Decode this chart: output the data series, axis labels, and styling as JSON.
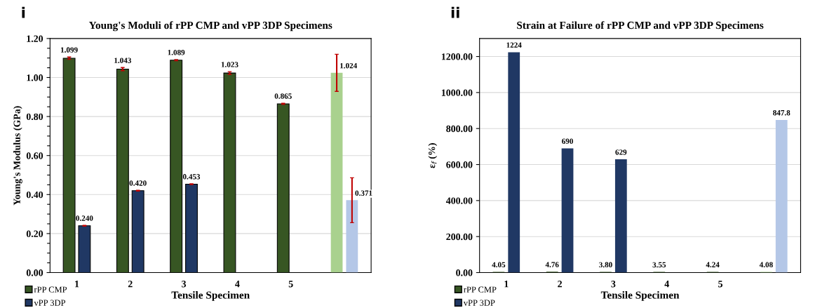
{
  "chart_data": [
    {
      "type": "bar",
      "title": "Young's Moduli of rPP CMP and vPP 3DP Specimens",
      "xlabel": "Tensile Specimen",
      "ylabel": "Young's Modulus (GPa)",
      "annotations": [
        "i"
      ],
      "categories": [
        "1",
        "2",
        "3",
        "4",
        "5",
        null
      ],
      "series": [
        {
          "name": "rPP CMP",
          "color": "#375623",
          "colors": [
            "#375623",
            "#375623",
            "#375623",
            "#375623",
            "#375623",
            "#a9d18e"
          ],
          "values": [
            1.099,
            1.043,
            1.089,
            1.023,
            0.865,
            1.024
          ],
          "errors": [
            0.006,
            0.008,
            0.003,
            0.007,
            0.003,
            0.095
          ],
          "value_labels": [
            "1.099",
            "1.043",
            "1.089",
            "1.023",
            "0.865",
            "1.024"
          ]
        },
        {
          "name": "vPP 3DP",
          "color": "#203864",
          "colors": [
            "#203864",
            "#203864",
            "#203864",
            "#203864",
            "#203864",
            "#b4c7e7"
          ],
          "values": [
            0.24,
            0.42,
            0.453,
            null,
            null,
            0.371
          ],
          "errors": [
            0.002,
            0.002,
            0.002,
            null,
            null,
            0.115
          ],
          "value_labels": [
            "0.240",
            "0.420",
            "0.453",
            null,
            null,
            "0.371"
          ]
        }
      ],
      "ylim": [
        0,
        1.2
      ],
      "yticks": [
        {
          "value": 0,
          "label": "0.00"
        },
        {
          "value": 0.05,
          "label": null
        },
        {
          "value": 0.1,
          "label": null
        },
        {
          "value": 0.15,
          "label": null
        },
        {
          "value": 0.2,
          "label": "0.20"
        },
        {
          "value": 0.25,
          "label": null
        },
        {
          "value": 0.3,
          "label": null
        },
        {
          "value": 0.35,
          "label": null
        },
        {
          "value": 0.4,
          "label": "0.40"
        },
        {
          "value": 0.45,
          "label": null
        },
        {
          "value": 0.5,
          "label": null
        },
        {
          "value": 0.55,
          "label": null
        },
        {
          "value": 0.6,
          "label": "0.60"
        },
        {
          "value": 0.65,
          "label": null
        },
        {
          "value": 0.7,
          "label": null
        },
        {
          "value": 0.75,
          "label": null
        },
        {
          "value": 0.8,
          "label": "0.80"
        },
        {
          "value": 0.85,
          "label": null
        },
        {
          "value": 0.9,
          "label": null
        },
        {
          "value": 0.95,
          "label": null
        },
        {
          "value": 1.0,
          "label": "1.00"
        },
        {
          "value": 1.05,
          "label": null
        },
        {
          "value": 1.1,
          "label": null
        },
        {
          "value": 1.15,
          "label": null
        },
        {
          "value": 1.2,
          "label": "1.20"
        }
      ],
      "grid": "y",
      "legend": "bottom left"
    },
    {
      "type": "bar",
      "title": "Strain at Failure of rPP CMP and vPP 3DP Specimens",
      "xlabel": "Tensile Specimen",
      "ylabel": "ε$_{f}$ (%)",
      "annotations": [
        "ii"
      ],
      "categories": [
        "1",
        "2",
        "3",
        "4",
        "5",
        null
      ],
      "series": [
        {
          "name": "rPP CMP",
          "color": "#375623",
          "colors": [
            "#375623",
            "#375623",
            "#375623",
            "#375623",
            "#375623",
            "#a9d18e"
          ],
          "values": [
            4.05,
            4.76,
            3.8,
            3.55,
            4.24,
            4.08
          ],
          "value_labels": [
            "4.05",
            "4.76",
            "3.80",
            "3.55",
            "4.24",
            "4.08"
          ]
        },
        {
          "name": "vPP 3DP",
          "color": "#203864",
          "colors": [
            "#203864",
            "#203864",
            "#203864",
            "#203864",
            "#203864",
            "#b4c7e7"
          ],
          "values": [
            1224,
            690,
            629,
            null,
            null,
            847.8
          ],
          "value_labels": [
            "1224",
            "690",
            "629",
            null,
            null,
            "847.8"
          ]
        }
      ],
      "ylim": [
        0,
        1300
      ],
      "yticks": [
        {
          "value": 0,
          "label": "0.00"
        },
        {
          "value": 200,
          "label": "200.00"
        },
        {
          "value": 400,
          "label": "400.00"
        },
        {
          "value": 600,
          "label": "600.00"
        },
        {
          "value": 800,
          "label": "800.00"
        },
        {
          "value": 1000,
          "label": "1000.00"
        },
        {
          "value": 1200,
          "label": "1200.00"
        }
      ],
      "grid": "y",
      "legend": "bottom left"
    }
  ]
}
